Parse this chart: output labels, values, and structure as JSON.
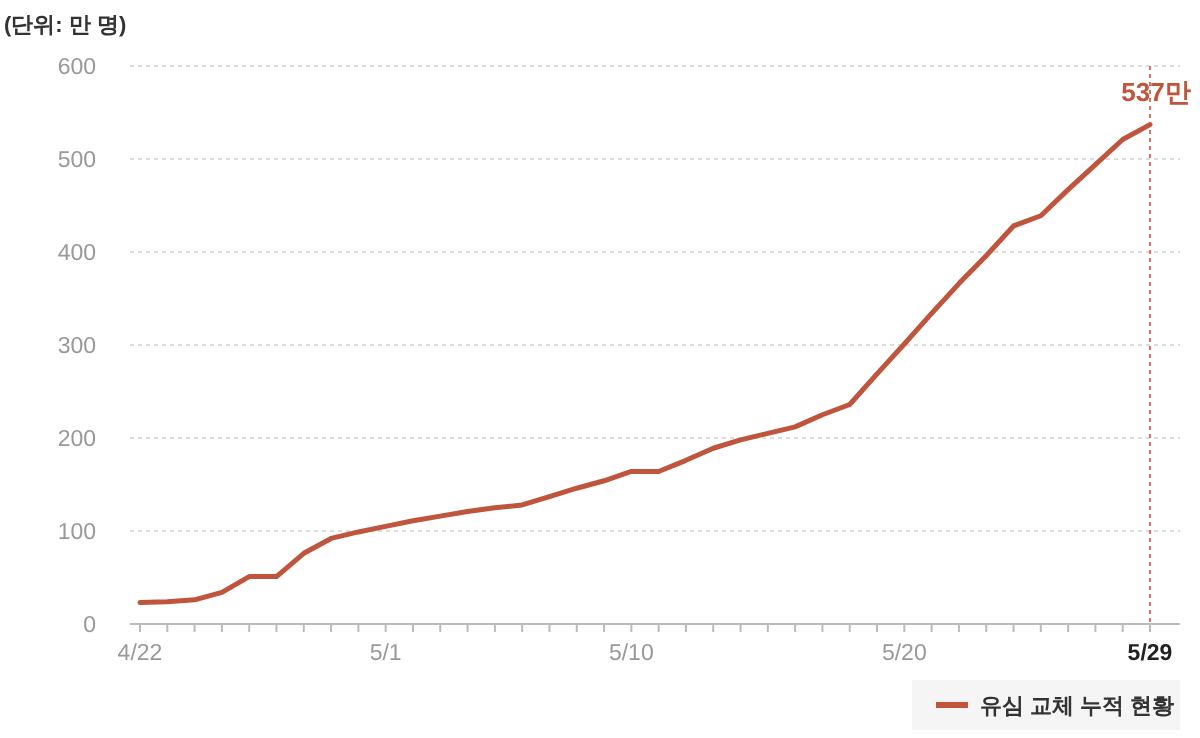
{
  "chart_data": {
    "type": "line",
    "ylabel": "(단위: 만 명)",
    "categories": [
      "4/22",
      null,
      null,
      null,
      null,
      null,
      null,
      null,
      null,
      "5/1",
      null,
      null,
      null,
      null,
      null,
      null,
      null,
      null,
      "5/10",
      null,
      null,
      null,
      null,
      null,
      null,
      null,
      null,
      null,
      "5/20",
      null,
      null,
      null,
      null,
      null,
      null,
      null,
      null,
      "5/29"
    ],
    "series": [
      {
        "name": "유심 교체 누적 현황",
        "color": "#c0553e",
        "values": [
          23,
          24,
          26,
          34,
          51,
          51,
          76,
          92,
          99,
          105,
          111,
          116,
          121,
          125,
          128,
          137,
          146,
          154,
          164,
          164,
          176,
          189,
          198,
          205,
          212,
          225,
          236,
          269,
          301,
          334,
          366,
          396,
          428,
          439,
          467,
          494,
          521,
          537
        ]
      }
    ],
    "ylim": [
      0,
      600
    ],
    "yticks": [
      0,
      100,
      200,
      300,
      400,
      500,
      600
    ],
    "grid": "y",
    "legend": "bottom right",
    "line_style": "solid",
    "marker": "none",
    "ref_lines": [
      {
        "axis": "x",
        "value": "5/29",
        "color": "#e07060",
        "line_style": "dotted"
      }
    ],
    "annotations": [
      {
        "text": "537만",
        "x": "5/29",
        "y": 537
      }
    ]
  }
}
